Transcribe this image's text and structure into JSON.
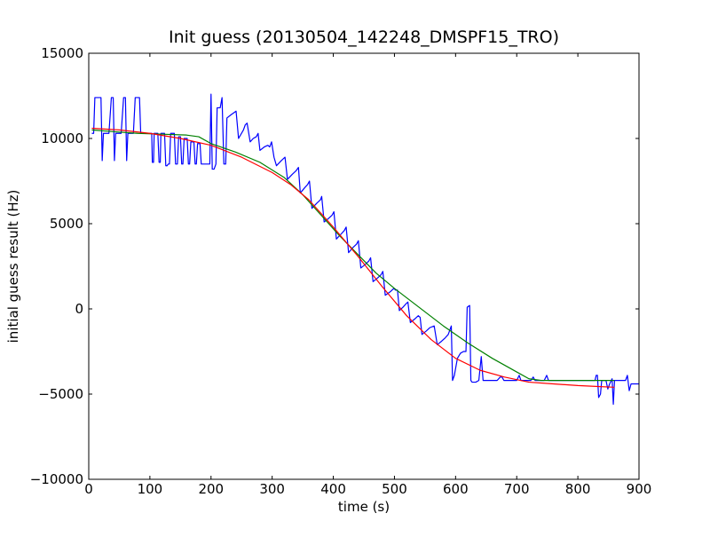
{
  "chart_data": {
    "type": "line",
    "title": "Init guess (20130504_142248_DMSPF15_TRO)",
    "xlabel": "time (s)",
    "ylabel": "initial guess result (Hz)",
    "xlim": [
      0,
      900
    ],
    "ylim": [
      -10000,
      15000
    ],
    "x_ticks": [
      0,
      100,
      200,
      300,
      400,
      500,
      600,
      700,
      800,
      900
    ],
    "x_tick_labels": [
      "0",
      "100",
      "200",
      "300",
      "400",
      "500",
      "600",
      "700",
      "800",
      "900"
    ],
    "y_ticks": [
      -10000,
      -5000,
      0,
      5000,
      10000,
      15000
    ],
    "y_tick_labels": [
      "−10000",
      "−5000",
      "0",
      "5000",
      "10000",
      "15000"
    ],
    "grid": false,
    "legend": "none",
    "series": [
      {
        "color": "#0000ff",
        "points": [
          [
            5,
            10300
          ],
          [
            8,
            10300
          ],
          [
            10,
            12400
          ],
          [
            20,
            12400
          ],
          [
            22,
            8700
          ],
          [
            24,
            10300
          ],
          [
            33,
            10300
          ],
          [
            37,
            12400
          ],
          [
            40,
            12400
          ],
          [
            42,
            8700
          ],
          [
            44,
            10300
          ],
          [
            53,
            10300
          ],
          [
            57,
            12400
          ],
          [
            60,
            12400
          ],
          [
            62,
            8700
          ],
          [
            64,
            10300
          ],
          [
            73,
            10300
          ],
          [
            76,
            12400
          ],
          [
            83,
            12400
          ],
          [
            85,
            10300
          ],
          [
            97,
            10300
          ],
          [
            103,
            10300
          ],
          [
            104,
            8600
          ],
          [
            106,
            8600
          ],
          [
            107,
            10300
          ],
          [
            113,
            10300
          ],
          [
            115,
            8600
          ],
          [
            117,
            8600
          ],
          [
            118,
            10300
          ],
          [
            124,
            10300
          ],
          [
            126,
            8400
          ],
          [
            128,
            8400
          ],
          [
            130,
            8500
          ],
          [
            132,
            8500
          ],
          [
            134,
            10300
          ],
          [
            140,
            10300
          ],
          [
            142,
            8500
          ],
          [
            145,
            8500
          ],
          [
            147,
            10100
          ],
          [
            150,
            10100
          ],
          [
            152,
            8500
          ],
          [
            154,
            8500
          ],
          [
            156,
            10000
          ],
          [
            161,
            10000
          ],
          [
            163,
            8500
          ],
          [
            165,
            8500
          ],
          [
            167,
            9800
          ],
          [
            172,
            9800
          ],
          [
            174,
            8500
          ],
          [
            176,
            8500
          ],
          [
            178,
            9700
          ],
          [
            182,
            9700
          ],
          [
            184,
            8500
          ],
          [
            195,
            8500
          ],
          [
            198,
            8500
          ],
          [
            200,
            12600
          ],
          [
            202,
            8200
          ],
          [
            205,
            8200
          ],
          [
            208,
            8500
          ],
          [
            210,
            11800
          ],
          [
            213,
            11800
          ],
          [
            215,
            11800
          ],
          [
            218,
            12400
          ],
          [
            221,
            8500
          ],
          [
            224,
            8500
          ],
          [
            226,
            11200
          ],
          [
            233,
            11400
          ],
          [
            241,
            11600
          ],
          [
            245,
            10000
          ],
          [
            253,
            10500
          ],
          [
            256,
            10800
          ],
          [
            259,
            10900
          ],
          [
            264,
            9800
          ],
          [
            269,
            10000
          ],
          [
            274,
            10100
          ],
          [
            277,
            10300
          ],
          [
            280,
            9300
          ],
          [
            287,
            9500
          ],
          [
            293,
            9600
          ],
          [
            296,
            9500
          ],
          [
            299,
            9800
          ],
          [
            303,
            8900
          ],
          [
            307,
            8400
          ],
          [
            315,
            8700
          ],
          [
            321,
            8900
          ],
          [
            325,
            7600
          ],
          [
            333,
            7900
          ],
          [
            339,
            8100
          ],
          [
            343,
            8300
          ],
          [
            346,
            6800
          ],
          [
            353,
            7100
          ],
          [
            358,
            7300
          ],
          [
            361,
            7500
          ],
          [
            365,
            5900
          ],
          [
            373,
            6200
          ],
          [
            379,
            6400
          ],
          [
            381,
            6600
          ],
          [
            385,
            5100
          ],
          [
            392,
            5300
          ],
          [
            398,
            5500
          ],
          [
            401,
            5700
          ],
          [
            405,
            4100
          ],
          [
            413,
            4400
          ],
          [
            418,
            4600
          ],
          [
            421,
            4800
          ],
          [
            425,
            3300
          ],
          [
            432,
            3600
          ],
          [
            438,
            3800
          ],
          [
            441,
            4000
          ],
          [
            445,
            2400
          ],
          [
            452,
            2600
          ],
          [
            458,
            2800
          ],
          [
            461,
            3000
          ],
          [
            465,
            1600
          ],
          [
            472,
            1800
          ],
          [
            478,
            2000
          ],
          [
            481,
            2200
          ],
          [
            485,
            800
          ],
          [
            493,
            1000
          ],
          [
            499,
            1200
          ],
          [
            502,
            1100
          ],
          [
            505,
            1100
          ],
          [
            508,
            -100
          ],
          [
            514,
            100
          ],
          [
            519,
            300
          ],
          [
            522,
            400
          ],
          [
            526,
            -800
          ],
          [
            533,
            -600
          ],
          [
            539,
            -400
          ],
          [
            542,
            -500
          ],
          [
            545,
            -1500
          ],
          [
            552,
            -1300
          ],
          [
            558,
            -1100
          ],
          [
            565,
            -1000
          ],
          [
            570,
            -2100
          ],
          [
            577,
            -1900
          ],
          [
            583,
            -1700
          ],
          [
            588,
            -1500
          ],
          [
            591,
            -1200
          ],
          [
            593,
            -1000
          ],
          [
            595,
            -4200
          ],
          [
            598,
            -3900
          ],
          [
            603,
            -2900
          ],
          [
            608,
            -2600
          ],
          [
            613,
            -2500
          ],
          [
            617,
            -2500
          ],
          [
            619,
            100
          ],
          [
            623,
            200
          ],
          [
            625,
            -4200
          ],
          [
            627,
            -4300
          ],
          [
            633,
            -4300
          ],
          [
            638,
            -4200
          ],
          [
            642,
            -2800
          ],
          [
            645,
            -4200
          ],
          [
            660,
            -4200
          ],
          [
            665,
            -4200
          ],
          [
            668,
            -4200
          ],
          [
            673,
            -4000
          ],
          [
            676,
            -4000
          ],
          [
            679,
            -4200
          ],
          [
            700,
            -4200
          ],
          [
            704,
            -3900
          ],
          [
            707,
            -4200
          ],
          [
            723,
            -4200
          ],
          [
            727,
            -4000
          ],
          [
            730,
            -4200
          ],
          [
            745,
            -4200
          ],
          [
            749,
            -3900
          ],
          [
            752,
            -4200
          ],
          [
            775,
            -4200
          ],
          [
            790,
            -4200
          ],
          [
            810,
            -4200
          ],
          [
            828,
            -4200
          ],
          [
            830,
            -3900
          ],
          [
            832,
            -3900
          ],
          [
            834,
            -5200
          ],
          [
            837,
            -5000
          ],
          [
            839,
            -4200
          ],
          [
            846,
            -4200
          ],
          [
            849,
            -4700
          ],
          [
            852,
            -4400
          ],
          [
            856,
            -4100
          ],
          [
            858,
            -5600
          ],
          [
            860,
            -4200
          ],
          [
            878,
            -4200
          ],
          [
            881,
            -3900
          ],
          [
            884,
            -4800
          ],
          [
            887,
            -4400
          ],
          [
            900,
            -4400
          ]
        ]
      },
      {
        "color": "#008000",
        "points": [
          [
            5,
            10500
          ],
          [
            40,
            10400
          ],
          [
            80,
            10300
          ],
          [
            120,
            10250
          ],
          [
            160,
            10200
          ],
          [
            180,
            10100
          ],
          [
            200,
            9700
          ],
          [
            240,
            9200
          ],
          [
            280,
            8600
          ],
          [
            320,
            7700
          ],
          [
            350,
            6700
          ],
          [
            380,
            5500
          ],
          [
            410,
            4300
          ],
          [
            440,
            3200
          ],
          [
            470,
            2100
          ],
          [
            500,
            1200
          ],
          [
            540,
            100
          ],
          [
            580,
            -1000
          ],
          [
            620,
            -2000
          ],
          [
            660,
            -2900
          ],
          [
            700,
            -3700
          ],
          [
            720,
            -4100
          ],
          [
            740,
            -4200
          ],
          [
            780,
            -4200
          ],
          [
            820,
            -4200
          ],
          [
            860,
            -4200
          ]
        ]
      },
      {
        "color": "#ff0000",
        "points": [
          [
            5,
            10600
          ],
          [
            50,
            10500
          ],
          [
            100,
            10300
          ],
          [
            150,
            10000
          ],
          [
            200,
            9600
          ],
          [
            250,
            8900
          ],
          [
            300,
            8000
          ],
          [
            330,
            7300
          ],
          [
            360,
            6400
          ],
          [
            400,
            4800
          ],
          [
            440,
            3100
          ],
          [
            480,
            1300
          ],
          [
            520,
            -400
          ],
          [
            560,
            -1800
          ],
          [
            600,
            -2900
          ],
          [
            640,
            -3600
          ],
          [
            680,
            -4000
          ],
          [
            720,
            -4300
          ],
          [
            760,
            -4400
          ],
          [
            800,
            -4500
          ],
          [
            830,
            -4550
          ],
          [
            860,
            -4600
          ]
        ]
      }
    ]
  }
}
